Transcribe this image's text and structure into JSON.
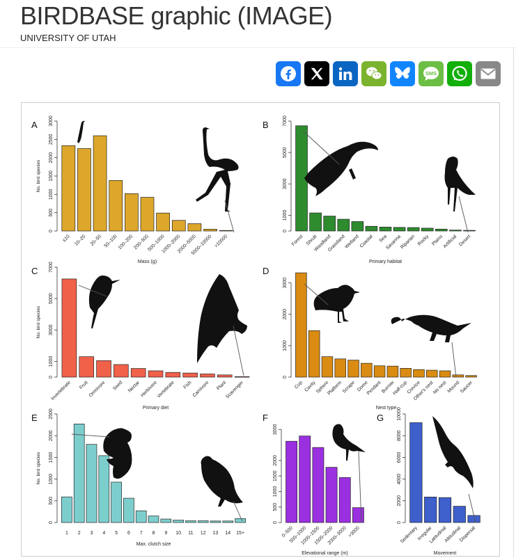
{
  "header": {
    "title": "BIRDBASE graphic (IMAGE)",
    "subtitle": "UNIVERSITY OF UTAH"
  },
  "share_buttons": [
    {
      "name": "facebook",
      "icon": "facebook-icon",
      "color": "#1877f2",
      "glyph": "f"
    },
    {
      "name": "x",
      "icon": "x-icon",
      "color": "#000000",
      "glyph": "𝕏"
    },
    {
      "name": "linkedin",
      "icon": "linkedin-icon",
      "color": "#0a66c2",
      "glyph": "in"
    },
    {
      "name": "wechat",
      "icon": "wechat-icon",
      "color": "#7bb32e",
      "glyph": "✉"
    },
    {
      "name": "bluesky",
      "icon": "bluesky-icon",
      "color": "#1185fe",
      "glyph": "🦋"
    },
    {
      "name": "sms",
      "icon": "sms-icon",
      "color": "#6cbe45",
      "glyph": "SMS"
    },
    {
      "name": "whatsapp",
      "icon": "whatsapp-icon",
      "color": "#12af0a",
      "glyph": "✆"
    },
    {
      "name": "email",
      "icon": "email-icon",
      "color": "#888888",
      "glyph": "✉"
    }
  ],
  "chart_data": [
    {
      "panel": "A",
      "type": "bar",
      "color": "#dca72a",
      "ylabel": "No. bird species",
      "xlabel": "Mass (g)",
      "ylim": [
        0,
        3000
      ],
      "yticks": [
        0,
        500,
        1000,
        1500,
        2000,
        2500,
        3000
      ],
      "categories": [
        "≤10",
        "10–20",
        "20–50",
        "50–100",
        "100–200",
        "200–500",
        "500–1000",
        "1000–2000",
        "2000–5000",
        "5000–10000",
        ">10000"
      ],
      "values": [
        2330,
        2250,
        2600,
        1380,
        1020,
        920,
        490,
        290,
        200,
        50,
        15
      ]
    },
    {
      "panel": "B",
      "type": "bar",
      "color": "#2e8b2e",
      "ylabel": "",
      "xlabel": "Primary habitat",
      "ylim": [
        0,
        7000
      ],
      "yticks": [
        0,
        1000,
        3000,
        5000,
        7000
      ],
      "categories": [
        "Forest",
        "Shrub",
        "Woodland",
        "Grassland",
        "Wetland",
        "Coastal",
        "Sea",
        "Savanna",
        "Riparian",
        "Rocky",
        "Plains",
        "Artificial",
        "Desert"
      ],
      "values": [
        6700,
        1150,
        950,
        750,
        600,
        300,
        250,
        230,
        220,
        180,
        120,
        60,
        40
      ]
    },
    {
      "panel": "C",
      "type": "bar",
      "color": "#f0614a",
      "ylabel": "No. bird species",
      "xlabel": "Primary diet",
      "ylim": [
        0,
        7000
      ],
      "yticks": [
        0,
        1000,
        3000,
        5000,
        7000
      ],
      "categories": [
        "Invertebrate",
        "Fruit",
        "Omnivore",
        "Seed",
        "Nectar",
        "Herbivore",
        "Vertebrate",
        "Fish",
        "Carnivore",
        "Plant",
        "Scavenger"
      ],
      "values": [
        6250,
        1300,
        1050,
        800,
        550,
        400,
        300,
        260,
        200,
        140,
        30
      ]
    },
    {
      "panel": "D",
      "type": "bar",
      "color": "#d98b12",
      "ylabel": "",
      "xlabel": "Nest type",
      "ylim": [
        0,
        3500
      ],
      "yticks": [
        0,
        1000,
        2000,
        3000
      ],
      "categories": [
        "Cup",
        "Cavity",
        "Sphere",
        "Platform",
        "Scrape",
        "Dome",
        "Pendant",
        "Burrow",
        "Half-cup",
        "Crevice",
        "Other's nest",
        "No nest",
        "Mound",
        "Saucer"
      ],
      "values": [
        3320,
        1480,
        650,
        580,
        540,
        440,
        360,
        350,
        280,
        240,
        220,
        200,
        70,
        50
      ]
    },
    {
      "panel": "E",
      "type": "bar",
      "color": "#7ccecd",
      "ylabel": "No. bird species",
      "xlabel": "Max. clutch size",
      "ylim": [
        0,
        2500
      ],
      "yticks": [
        0,
        500,
        1000,
        1500,
        2000,
        2500
      ],
      "categories": [
        "1",
        "2",
        "3",
        "4",
        "5",
        "6",
        "7",
        "8",
        "9",
        "10",
        "11",
        "12",
        "13",
        "14",
        "15+"
      ],
      "values": [
        590,
        2270,
        1800,
        1540,
        930,
        560,
        270,
        150,
        80,
        55,
        40,
        40,
        35,
        35,
        90
      ]
    },
    {
      "panel": "F",
      "type": "bar",
      "color": "#9b30e0",
      "ylabel": "",
      "xlabel": "Elevational range (m)",
      "ylim": [
        0,
        3500
      ],
      "yticks": [
        0,
        500,
        1000,
        1500,
        2000,
        3000
      ],
      "categories": [
        "0–500",
        "500–1000",
        "1000–1500",
        "1500–2000",
        "2000–3000",
        ">3000"
      ],
      "values": [
        2620,
        2790,
        2420,
        1780,
        1450,
        480
      ]
    },
    {
      "panel": "G",
      "type": "bar",
      "color": "#3e60cc",
      "ylabel": "",
      "xlabel": "Movement",
      "ylim": [
        0,
        10000
      ],
      "yticks": [
        0,
        2000,
        4000,
        6000,
        8000,
        10000
      ],
      "categories": [
        "Sedentary",
        "Irregular",
        "Latitudinal",
        "Altitudinal",
        "Dispersal"
      ],
      "values": [
        9200,
        2350,
        2300,
        1500,
        650
      ]
    }
  ]
}
